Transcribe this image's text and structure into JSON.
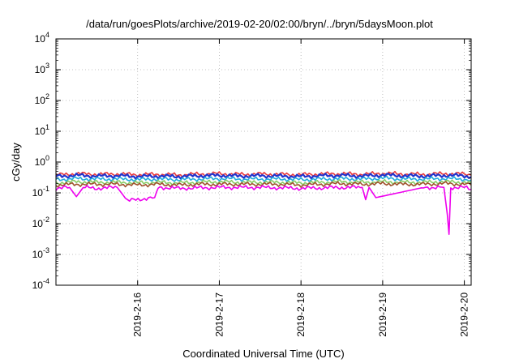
{
  "chart_data": {
    "type": "line",
    "title": "/data/run/goesPlots/archive/2019-02-20/02:00/bryn/../bryn/5daysMoon.plot",
    "xlabel": "Coordinated Universal Time (UTC)",
    "ylabel": "cGy/day",
    "yscale": "log",
    "ylim": [
      0.0001,
      10000
    ],
    "xlim": [
      "2019-02-15T00:00",
      "2019-02-20T02:00"
    ],
    "grid": true,
    "y_ticks": [
      {
        "base": "10",
        "exp": "-4"
      },
      {
        "base": "10",
        "exp": "-3"
      },
      {
        "base": "10",
        "exp": "-2"
      },
      {
        "base": "10",
        "exp": "-1"
      },
      {
        "base": "10",
        "exp": "0"
      },
      {
        "base": "10",
        "exp": "1"
      },
      {
        "base": "10",
        "exp": "2"
      },
      {
        "base": "10",
        "exp": "3"
      },
      {
        "base": "10",
        "exp": "4"
      }
    ],
    "x_ticks": [
      {
        "label": "2019-2-16",
        "x": "2019-02-16T00:00"
      },
      {
        "label": "2019-2-17",
        "x": "2019-02-17T00:00"
      },
      {
        "label": "2019-2-18",
        "x": "2019-02-18T00:00"
      },
      {
        "label": "2019-2-19",
        "x": "2019-02-19T00:00"
      },
      {
        "label": "2019-2-20",
        "x": "2019-02-20T00:00"
      }
    ],
    "series": [
      {
        "color": "#e8383d",
        "base": 0.4,
        "x": [
          "2019-02-15T00:00",
          "2019-02-15T06:00",
          "2019-02-15T12:00",
          "2019-02-15T18:00",
          "2019-02-16T00:00",
          "2019-02-16T06:00",
          "2019-02-16T12:00",
          "2019-02-16T18:00",
          "2019-02-17T00:00",
          "2019-02-17T06:00",
          "2019-02-17T12:00",
          "2019-02-17T18:00",
          "2019-02-18T00:00",
          "2019-02-18T06:00",
          "2019-02-18T12:00",
          "2019-02-18T18:00",
          "2019-02-19T00:00",
          "2019-02-19T06:00",
          "2019-02-19T12:00",
          "2019-02-19T18:00",
          "2019-02-20T00:00",
          "2019-02-20T02:00"
        ],
        "y": [
          0.38,
          0.42,
          0.4,
          0.41,
          0.39,
          0.4,
          0.38,
          0.41,
          0.42,
          0.4,
          0.41,
          0.4,
          0.39,
          0.41,
          0.42,
          0.4,
          0.43,
          0.41,
          0.4,
          0.42,
          0.41,
          0.38
        ]
      },
      {
        "color": "#2233cc",
        "base": 0.35,
        "x": [
          "2019-02-15T00:00",
          "2019-02-15T06:00",
          "2019-02-15T12:00",
          "2019-02-15T18:00",
          "2019-02-16T00:00",
          "2019-02-16T06:00",
          "2019-02-16T12:00",
          "2019-02-16T18:00",
          "2019-02-17T00:00",
          "2019-02-17T06:00",
          "2019-02-17T12:00",
          "2019-02-17T18:00",
          "2019-02-18T00:00",
          "2019-02-18T06:00",
          "2019-02-18T12:00",
          "2019-02-18T18:00",
          "2019-02-19T00:00",
          "2019-02-19T06:00",
          "2019-02-19T12:00",
          "2019-02-19T18:00",
          "2019-02-20T00:00",
          "2019-02-20T02:00"
        ],
        "y": [
          0.34,
          0.37,
          0.35,
          0.36,
          0.34,
          0.35,
          0.34,
          0.36,
          0.37,
          0.35,
          0.36,
          0.35,
          0.34,
          0.36,
          0.37,
          0.35,
          0.38,
          0.36,
          0.35,
          0.37,
          0.36,
          0.33
        ]
      },
      {
        "color": "#22aadd",
        "base": 0.28,
        "x": [
          "2019-02-15T00:00",
          "2019-02-15T06:00",
          "2019-02-15T12:00",
          "2019-02-15T18:00",
          "2019-02-16T00:00",
          "2019-02-16T06:00",
          "2019-02-16T12:00",
          "2019-02-16T18:00",
          "2019-02-17T00:00",
          "2019-02-17T06:00",
          "2019-02-17T12:00",
          "2019-02-17T18:00",
          "2019-02-18T00:00",
          "2019-02-18T06:00",
          "2019-02-18T12:00",
          "2019-02-18T18:00",
          "2019-02-19T00:00",
          "2019-02-19T06:00",
          "2019-02-19T12:00",
          "2019-02-19T18:00",
          "2019-02-20T00:00",
          "2019-02-20T02:00"
        ],
        "y": [
          0.27,
          0.29,
          0.28,
          0.28,
          0.27,
          0.28,
          0.27,
          0.28,
          0.29,
          0.28,
          0.28,
          0.28,
          0.27,
          0.28,
          0.29,
          0.28,
          0.3,
          0.28,
          0.28,
          0.29,
          0.28,
          0.26
        ]
      },
      {
        "color": "#88cc66",
        "base": 0.22,
        "x": [
          "2019-02-15T00:00",
          "2019-02-15T06:00",
          "2019-02-15T12:00",
          "2019-02-15T18:00",
          "2019-02-16T00:00",
          "2019-02-16T06:00",
          "2019-02-16T12:00",
          "2019-02-16T18:00",
          "2019-02-17T00:00",
          "2019-02-17T06:00",
          "2019-02-17T12:00",
          "2019-02-17T18:00",
          "2019-02-18T00:00",
          "2019-02-18T06:00",
          "2019-02-18T12:00",
          "2019-02-18T18:00",
          "2019-02-19T00:00",
          "2019-02-19T06:00",
          "2019-02-19T12:00",
          "2019-02-19T18:00",
          "2019-02-20T00:00",
          "2019-02-20T02:00"
        ],
        "y": [
          0.21,
          0.23,
          0.22,
          0.22,
          0.21,
          0.22,
          0.21,
          0.22,
          0.23,
          0.22,
          0.22,
          0.22,
          0.21,
          0.22,
          0.23,
          0.22,
          0.23,
          0.22,
          0.22,
          0.23,
          0.22,
          0.21
        ]
      },
      {
        "color": "#a0522d",
        "base": 0.19,
        "x": [
          "2019-02-15T00:00",
          "2019-02-15T06:00",
          "2019-02-15T12:00",
          "2019-02-15T18:00",
          "2019-02-16T00:00",
          "2019-02-16T06:00",
          "2019-02-16T12:00",
          "2019-02-16T18:00",
          "2019-02-17T00:00",
          "2019-02-17T06:00",
          "2019-02-17T12:00",
          "2019-02-17T18:00",
          "2019-02-18T00:00",
          "2019-02-18T06:00",
          "2019-02-18T12:00",
          "2019-02-18T18:00",
          "2019-02-19T00:00",
          "2019-02-19T06:00",
          "2019-02-19T12:00",
          "2019-02-19T18:00",
          "2019-02-20T00:00",
          "2019-02-20T02:00"
        ],
        "y": [
          0.18,
          0.19,
          0.19,
          0.19,
          0.18,
          0.19,
          0.18,
          0.19,
          0.19,
          0.19,
          0.19,
          0.19,
          0.18,
          0.19,
          0.2,
          0.19,
          0.2,
          0.19,
          0.19,
          0.2,
          0.19,
          0.18
        ]
      },
      {
        "color": "#ee00ee",
        "base": 0.15,
        "x": [
          "2019-02-15T00:00",
          "2019-02-15T04:00",
          "2019-02-15T06:00",
          "2019-02-15T08:00",
          "2019-02-15T12:00",
          "2019-02-15T18:00",
          "2019-02-15T21:00",
          "2019-02-16T02:00",
          "2019-02-16T05:00",
          "2019-02-16T06:00",
          "2019-02-16T07:00",
          "2019-02-16T12:00",
          "2019-02-17T00:00",
          "2019-02-17T12:00",
          "2019-02-18T00:00",
          "2019-02-18T12:00",
          "2019-02-18T18:00",
          "2019-02-18T19:00",
          "2019-02-18T20:00",
          "2019-02-18T22:00",
          "2019-02-19T12:00",
          "2019-02-19T18:00",
          "2019-02-19T19:00",
          "2019-02-19T19:30",
          "2019-02-19T20:00",
          "2019-02-20T00:00",
          "2019-02-20T02:00"
        ],
        "y": [
          0.14,
          0.15,
          0.075,
          0.15,
          0.14,
          0.15,
          0.055,
          0.065,
          0.07,
          0.15,
          0.15,
          0.14,
          0.15,
          0.15,
          0.14,
          0.15,
          0.15,
          0.06,
          0.15,
          0.07,
          0.15,
          0.15,
          0.02,
          0.0045,
          0.15,
          0.15,
          0.13
        ]
      }
    ]
  }
}
